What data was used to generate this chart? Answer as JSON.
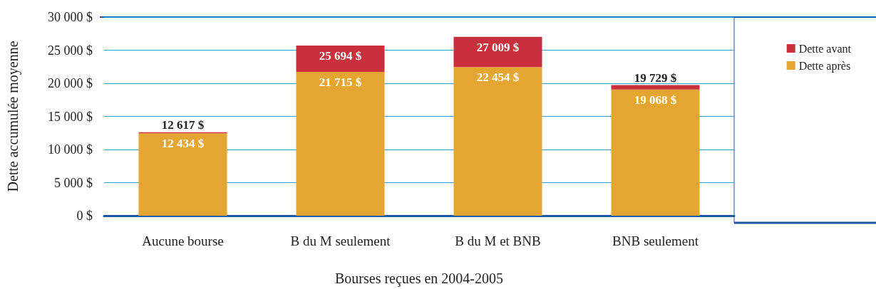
{
  "chart_data": {
    "type": "bar",
    "stacked": true,
    "xlabel": "Bourses reçues en 2004-2005",
    "ylabel": "Dette accumulée moyenne",
    "categories": [
      "Aucune bourse",
      "B du M seulement",
      "B du M et BNB",
      "BNB seulement"
    ],
    "series": [
      {
        "name": "Dette après",
        "color": "#e5a631",
        "values": [
          12434,
          21715,
          22454,
          19068
        ],
        "value_labels": [
          "12 434 $",
          "21 715 $",
          "22 454 $",
          "19 068 $"
        ]
      },
      {
        "name": "Dette avant",
        "color": "#c9303b",
        "values": [
          183,
          3979,
          4555,
          661
        ]
      }
    ],
    "totals": [
      "12 617 $",
      "25 694 $",
      "27 009 $",
      "19 729 $"
    ],
    "ylim": [
      0,
      30000
    ],
    "yticks": [
      {
        "value": 0,
        "label": "0 $"
      },
      {
        "value": 5000,
        "label": "5 000 $"
      },
      {
        "value": 10000,
        "label": "10 000 $"
      },
      {
        "value": 15000,
        "label": "15 000 $"
      },
      {
        "value": 20000,
        "label": "20 000 $"
      },
      {
        "value": 25000,
        "label": "25 000 $"
      },
      {
        "value": 30000,
        "label": "30 000 $"
      }
    ],
    "grid": "y",
    "legend": "right"
  }
}
